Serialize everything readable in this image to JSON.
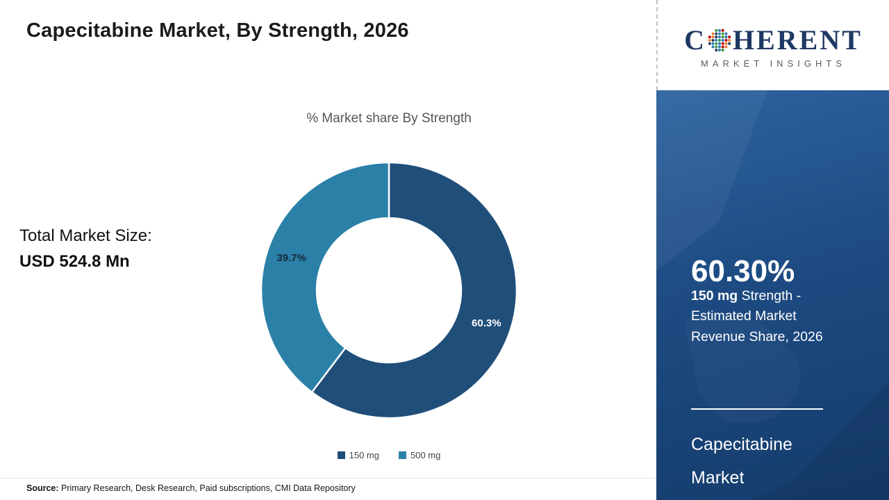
{
  "title": "Capecitabine Market, By Strength, 2026",
  "logo": {
    "prefix": "C",
    "suffix": "HERENT",
    "subtitle": "MARKET INSIGHTS"
  },
  "chart_data": {
    "type": "pie",
    "donut": true,
    "title": "% Market share By Strength",
    "categories": [
      "150 mg",
      "500 mg"
    ],
    "values": [
      60.3,
      39.7
    ],
    "data_labels": [
      "60.3%",
      "39.7%"
    ],
    "colors": [
      "#1f4e79",
      "#2b80a8"
    ],
    "label_colors": [
      "#ffffff",
      "#17293d"
    ],
    "legend_position": "bottom"
  },
  "summary": {
    "total_label": "Total Market Size:",
    "total_value": "USD 524.8 Mn"
  },
  "panel": {
    "stat_value": "60.30%",
    "stat_strong": "150 mg",
    "stat_text": " Strength - Estimated Market Revenue Share, 2026",
    "market_line1": "Capecitabine",
    "market_line2": "Market"
  },
  "footer": {
    "source_label": "Source:",
    "source_text": " Primary Research, Desk Research, Paid subscriptions, CMI Data Repository"
  },
  "colors": {
    "panel_gradient_top": "#2d639f",
    "panel_gradient_bottom": "#153c6c",
    "brand_navy": "#1f3864"
  }
}
